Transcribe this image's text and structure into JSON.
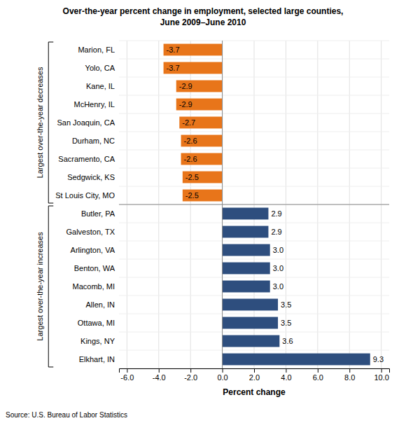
{
  "chart_data": {
    "type": "bar",
    "orientation": "horizontal",
    "title": "Over-the-year percent change in employment, selected large counties,\nJune 2009–June 2010",
    "categories": [
      "Marion, FL",
      "Yolo, CA",
      "Kane, IL",
      "McHenry, IL",
      "San Joaquin, CA",
      "Durham, NC",
      "Sacramento, CA",
      "Sedgwick, KS",
      "St Louis City, MO",
      "Butler, PA",
      "Galveston, TX",
      "Arlington, VA",
      "Benton, WA",
      "Macomb, MI",
      "Allen, IN",
      "Ottawa, MI",
      "Kings, NY",
      "Elkhart, IN"
    ],
    "values": [
      -3.7,
      -3.7,
      -2.9,
      -2.9,
      -2.7,
      -2.6,
      -2.6,
      -2.5,
      -2.5,
      2.9,
      2.9,
      3.0,
      3.0,
      3.0,
      3.5,
      3.5,
      3.6,
      9.3
    ],
    "value_labels": [
      "-3.7",
      "-3.7",
      "-2.9",
      "-2.9",
      "-2.7",
      "-2.6",
      "-2.6",
      "-2.5",
      "-2.5",
      "2.9",
      "2.9",
      "3.0",
      "3.0",
      "3.0",
      "3.5",
      "3.5",
      "3.6",
      "9.3"
    ],
    "data_labels": true,
    "colors": [
      "#E8751A",
      "#E8751A",
      "#E8751A",
      "#E8751A",
      "#E8751A",
      "#E8751A",
      "#E8751A",
      "#E8751A",
      "#E8751A",
      "#2E4E7E",
      "#2E4E7E",
      "#2E4E7E",
      "#2E4E7E",
      "#2E4E7E",
      "#2E4E7E",
      "#2E4E7E",
      "#2E4E7E",
      "#2E4E7E"
    ],
    "xlim": [
      -6.5,
      10.5
    ],
    "xticks": [
      {
        "value": -6,
        "label": "-6.0"
      },
      {
        "value": -4,
        "label": "-4.0"
      },
      {
        "value": -2,
        "label": "-2.0"
      },
      {
        "value": 0,
        "label": "0.0"
      },
      {
        "value": 2,
        "label": "2.0"
      },
      {
        "value": 4,
        "label": "4.0"
      },
      {
        "value": 6,
        "label": "6.0"
      },
      {
        "value": 8,
        "label": "8.0"
      },
      {
        "value": 10,
        "label": "10.0"
      }
    ],
    "xlabel": "Percent change",
    "grid": true,
    "annotations": [
      "Largest over-the-year decreases",
      "Largest over-the-year increases",
      "Source: U.S. Bureau of Labor Statistics"
    ]
  }
}
